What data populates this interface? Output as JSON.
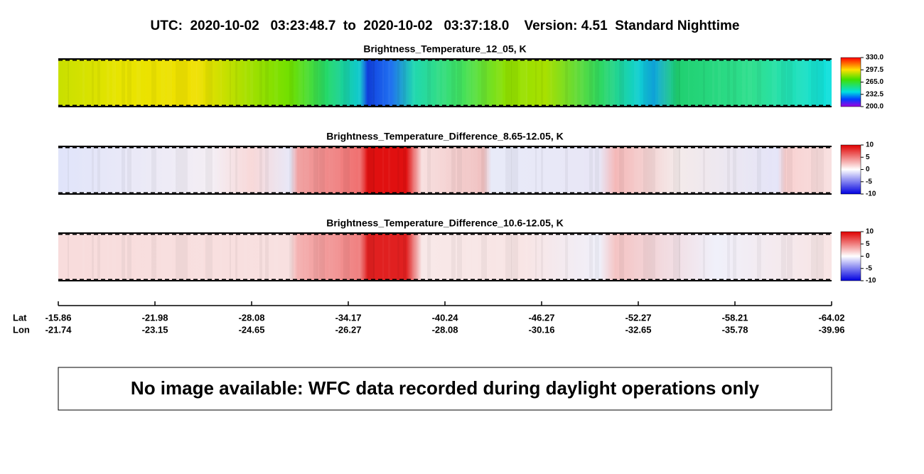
{
  "title": "UTC:  2020-10-02   03:23:48.7  to  2020-10-02   03:37:18.0    Version: 4.51  Standard Nighttime",
  "panels": [
    {
      "title": "Brightness_Temperature_12_05, K",
      "colorbar_ticks": [
        "330.0",
        "297.5",
        "265.0",
        "232.5",
        "200.0"
      ]
    },
    {
      "title": "Brightness_Temperature_Difference_8.65-12.05, K",
      "colorbar_ticks": [
        "10",
        "5",
        "0",
        "-5",
        "-10"
      ]
    },
    {
      "title": "Brightness_Temperature_Difference_10.6-12.05, K",
      "colorbar_ticks": [
        "10",
        "5",
        "0",
        "-5",
        "-10"
      ]
    }
  ],
  "axis": {
    "lat_label": "Lat",
    "lon_label": "Lon",
    "lat": [
      "-15.86",
      "-21.98",
      "-28.08",
      "-34.17",
      "-40.24",
      "-46.27",
      "-52.27",
      "-58.21",
      "-64.02"
    ],
    "lon": [
      "-21.74",
      "-23.15",
      "-24.65",
      "-26.27",
      "-28.08",
      "-30.16",
      "-32.65",
      "-35.78",
      "-39.96"
    ]
  },
  "notice": "No image available: WFC data recorded during daylight operations only"
}
